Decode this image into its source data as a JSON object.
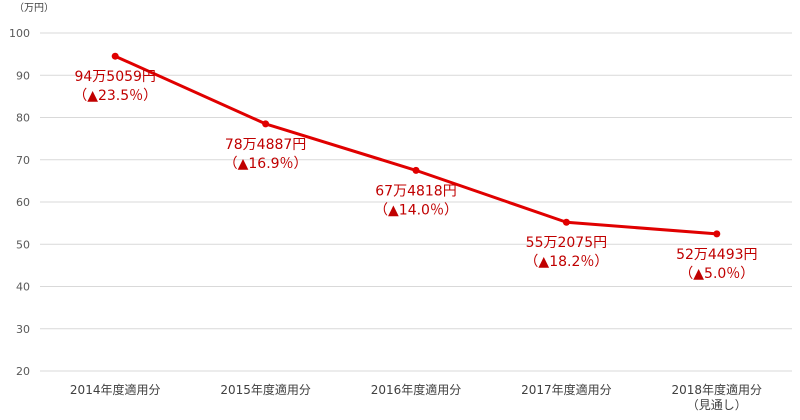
{
  "chart_data": {
    "type": "line",
    "title": "",
    "unit_label": "（万円）",
    "ylim": [
      20,
      100
    ],
    "yticks": [
      "20",
      "30",
      "40",
      "50",
      "60",
      "70",
      "80",
      "90",
      "100"
    ],
    "grid": true,
    "legend": "none",
    "line_color": "#e00000",
    "label_color": "#c00000",
    "categories": [
      [
        "2014年度適用分"
      ],
      [
        "2015年度適用分"
      ],
      [
        "2016年度適用分"
      ],
      [
        "2017年度適用分"
      ],
      [
        "2018年度適用分",
        "（見通し）"
      ]
    ],
    "series": [
      {
        "values": [
          94.5059,
          78.4887,
          67.4818,
          55.2075,
          52.4493
        ],
        "labels": [
          [
            "94万5059円",
            "（▲23.5％）"
          ],
          [
            "78万4887円",
            "（▲16.9％）"
          ],
          [
            "67万4818円",
            "（▲14.0％）"
          ],
          [
            "55万2075円",
            "（▲18.2％）"
          ],
          [
            "52万4493円",
            "（▲5.0％）"
          ]
        ]
      }
    ]
  }
}
